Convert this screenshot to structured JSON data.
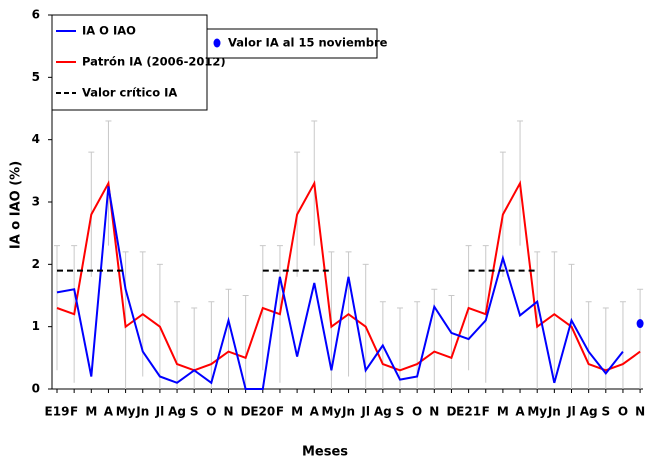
{
  "chart_data": {
    "type": "line",
    "x_label": "Meses",
    "y_label": "IA o IAO (%)",
    "categories": [
      "E19",
      "F",
      "M",
      "A",
      "My",
      "Jn",
      "Jl",
      "Ag",
      "S",
      "O",
      "N",
      "D",
      "E20",
      "F",
      "M",
      "A",
      "My",
      "Jn",
      "Jl",
      "Ag",
      "S",
      "O",
      "N",
      "D",
      "E21",
      "F",
      "M",
      "A",
      "My",
      "Jn",
      "Jl",
      "Ag",
      "S",
      "O",
      "N"
    ],
    "ylim": [
      0,
      6
    ],
    "yticks": [
      0,
      1,
      2,
      3,
      4,
      5,
      6
    ],
    "series": [
      {
        "name": "IA O IAO",
        "color": "#0000ff",
        "style": "solid",
        "values": [
          1.55,
          1.6,
          0.2,
          3.25,
          1.6,
          0.6,
          0.2,
          0.1,
          0.3,
          0.1,
          1.1,
          0,
          0,
          1.8,
          0.52,
          1.7,
          0.3,
          1.8,
          0.3,
          0.7,
          0.15,
          0.2,
          1.32,
          0.9,
          0.8,
          1.1,
          2.1,
          1.18,
          1.4,
          0.1,
          1.1,
          0.6,
          0.25,
          0.6,
          null
        ]
      },
      {
        "name": "Patrón IA (2006-2012)",
        "color": "#ff0000",
        "style": "solid",
        "values": [
          1.3,
          1.2,
          2.8,
          3.3,
          1.0,
          1.2,
          1.0,
          0.4,
          0.3,
          0.4,
          0.6,
          0.5,
          1.3,
          1.2,
          2.8,
          3.3,
          1.0,
          1.2,
          1.0,
          0.4,
          0.3,
          0.4,
          0.6,
          0.5,
          1.3,
          1.2,
          2.8,
          3.3,
          1.0,
          1.2,
          1.0,
          0.4,
          0.3,
          0.4,
          0.6
        ],
        "errors": [
          1.0,
          1.1,
          1.0,
          1.0,
          1.2,
          1.0,
          1.0,
          1.0,
          1.0,
          1.0,
          1.0,
          1.0,
          1.0,
          1.1,
          1.0,
          1.0,
          1.2,
          1.0,
          1.0,
          1.0,
          1.0,
          1.0,
          1.0,
          1.0,
          1.0,
          1.1,
          1.0,
          1.0,
          1.2,
          1.0,
          1.0,
          1.0,
          1.0,
          1.0,
          1.0
        ],
        "error_color": "#c8c8c8"
      },
      {
        "name": "Valor crítico IA",
        "color": "#000000",
        "style": "dashed",
        "values": [
          1.9,
          1.9,
          1.9,
          1.9,
          1.9,
          null,
          null,
          null,
          null,
          null,
          null,
          null,
          1.9,
          1.9,
          1.9,
          1.9,
          1.9,
          null,
          null,
          null,
          null,
          null,
          null,
          null,
          1.9,
          1.9,
          1.9,
          1.9,
          1.9,
          null,
          null,
          null,
          null,
          null,
          null
        ]
      },
      {
        "name": "Valor IA al 15 noviembre",
        "color": "#0000ff",
        "style": "marker",
        "values": [
          null,
          null,
          null,
          null,
          null,
          null,
          null,
          null,
          null,
          null,
          null,
          null,
          null,
          null,
          null,
          null,
          null,
          null,
          null,
          null,
          null,
          null,
          null,
          null,
          null,
          null,
          null,
          null,
          null,
          null,
          null,
          null,
          null,
          null,
          1.05
        ]
      }
    ]
  }
}
